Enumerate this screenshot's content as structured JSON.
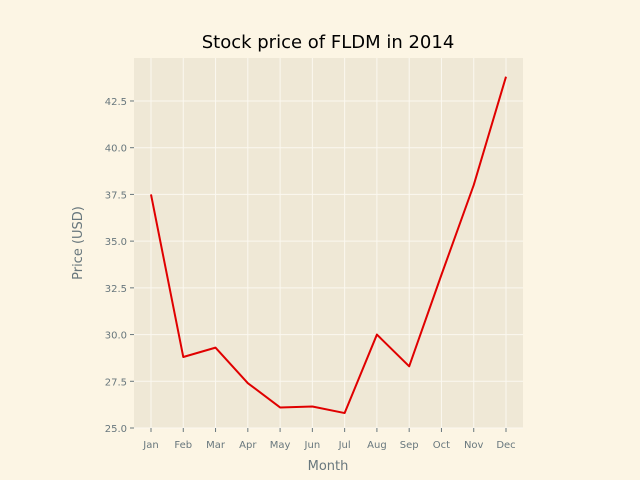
{
  "chart_data": {
    "type": "line",
    "title": "Stock price of FLDM in 2014",
    "xlabel": "Month",
    "ylabel": "Price (USD)",
    "categories": [
      "Jan",
      "Feb",
      "Mar",
      "Apr",
      "May",
      "Jun",
      "Jul",
      "Aug",
      "Sep",
      "Oct",
      "Nov",
      "Dec"
    ],
    "series": [
      {
        "values": [
          37.5,
          28.8,
          29.3,
          27.4,
          26.1,
          26.15,
          25.8,
          30.0,
          28.3,
          33.2,
          38.0,
          43.8
        ]
      }
    ],
    "ylim": [
      25.0,
      44.8
    ],
    "yticks": [
      25.0,
      27.5,
      30.0,
      32.5,
      35.0,
      37.5,
      40.0,
      42.5
    ],
    "ytick_labels": [
      "25.0",
      "27.5",
      "30.0",
      "32.5",
      "35.0",
      "37.5",
      "40.0",
      "42.5"
    ],
    "grid": true,
    "colors": {
      "line": "#e00000",
      "plot_background": "#efe8d6",
      "page_background": "#fcf5e4",
      "grid": "#fbf8f0",
      "text": "#68777d"
    }
  }
}
